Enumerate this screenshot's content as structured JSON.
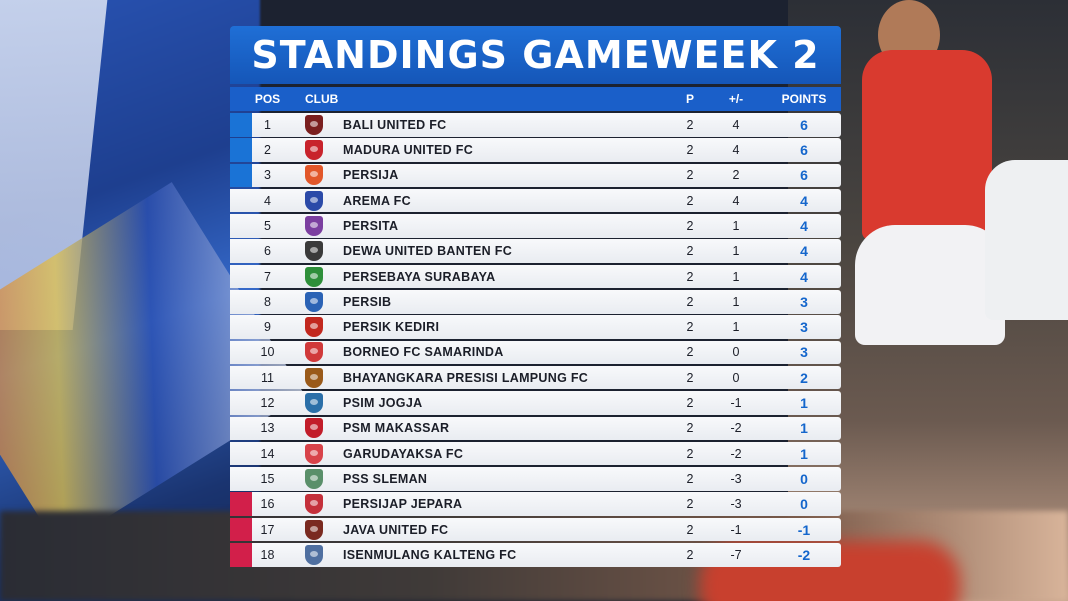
{
  "title": "STANDINGS GAMEWEEK 2",
  "columns": {
    "pos": "POS",
    "club": "CLUB",
    "played": "P",
    "diff": "+/-",
    "points": "POINTS"
  },
  "colors": {
    "title_bar": "#1f6fd6",
    "header_bar": "#1a5fc9",
    "qualify_marker": "#1a73d6",
    "relegation_marker": "#d21f4a",
    "points_text": "#1466cc"
  },
  "rows": [
    {
      "pos": "1",
      "club": "BALI UNITED FC",
      "p": "2",
      "diff": "4",
      "pts": "6",
      "zone": "qual",
      "crest_color": "#7a1f1f",
      "crest_icon": "bali-united-crest-icon"
    },
    {
      "pos": "2",
      "club": "MADURA UNITED FC",
      "p": "2",
      "diff": "4",
      "pts": "6",
      "zone": "qual",
      "crest_color": "#c8232c",
      "crest_icon": "madura-united-crest-icon"
    },
    {
      "pos": "3",
      "club": "PERSIJA",
      "p": "2",
      "diff": "2",
      "pts": "6",
      "zone": "qual",
      "crest_color": "#e2572a",
      "crest_icon": "persija-crest-icon"
    },
    {
      "pos": "4",
      "club": "AREMA FC",
      "p": "2",
      "diff": "4",
      "pts": "4",
      "zone": "none",
      "crest_color": "#2b4aa8",
      "crest_icon": "arema-crest-icon"
    },
    {
      "pos": "5",
      "club": "PERSITA",
      "p": "2",
      "diff": "1",
      "pts": "4",
      "zone": "none",
      "crest_color": "#7b3fa0",
      "crest_icon": "persita-crest-icon"
    },
    {
      "pos": "6",
      "club": "DEWA UNITED BANTEN FC",
      "p": "2",
      "diff": "1",
      "pts": "4",
      "zone": "none",
      "crest_color": "#3a3a3a",
      "crest_icon": "dewa-united-crest-icon"
    },
    {
      "pos": "7",
      "club": "PERSEBAYA SURABAYA",
      "p": "2",
      "diff": "1",
      "pts": "4",
      "zone": "none",
      "crest_color": "#2e8f3a",
      "crest_icon": "persebaya-crest-icon"
    },
    {
      "pos": "8",
      "club": "PERSIB",
      "p": "2",
      "diff": "1",
      "pts": "3",
      "zone": "none",
      "crest_color": "#2a62b5",
      "crest_icon": "persib-crest-icon"
    },
    {
      "pos": "9",
      "club": "PERSIK KEDIRI",
      "p": "2",
      "diff": "1",
      "pts": "3",
      "zone": "none",
      "crest_color": "#c2281f",
      "crest_icon": "persik-crest-icon"
    },
    {
      "pos": "10",
      "club": "BORNEO FC SAMARINDA",
      "p": "2",
      "diff": "0",
      "pts": "3",
      "zone": "none",
      "crest_color": "#d0393a",
      "crest_icon": "borneo-crest-icon"
    },
    {
      "pos": "11",
      "club": "BHAYANGKARA PRESISI LAMPUNG FC",
      "p": "2",
      "diff": "0",
      "pts": "2",
      "zone": "none",
      "crest_color": "#9a5a1a",
      "crest_icon": "bhayangkara-crest-icon"
    },
    {
      "pos": "12",
      "club": "PSIM JOGJA",
      "p": "2",
      "diff": "-1",
      "pts": "1",
      "zone": "none",
      "crest_color": "#2b6fa8",
      "crest_icon": "psim-crest-icon"
    },
    {
      "pos": "13",
      "club": "PSM MAKASSAR",
      "p": "2",
      "diff": "-2",
      "pts": "1",
      "zone": "none",
      "crest_color": "#c21d2a",
      "crest_icon": "psm-crest-icon"
    },
    {
      "pos": "14",
      "club": "GARUDAYAKSA FC",
      "p": "2",
      "diff": "-2",
      "pts": "1",
      "zone": "none",
      "crest_color": "#d8434a",
      "crest_icon": "garudayaksa-crest-icon"
    },
    {
      "pos": "15",
      "club": "PSS SLEMAN",
      "p": "2",
      "diff": "-3",
      "pts": "0",
      "zone": "none",
      "crest_color": "#5a8f6a",
      "crest_icon": "pss-crest-icon"
    },
    {
      "pos": "16",
      "club": "PERSIJAP JEPARA",
      "p": "2",
      "diff": "-3",
      "pts": "0",
      "zone": "releg",
      "crest_color": "#c4303b",
      "crest_icon": "persijap-crest-icon"
    },
    {
      "pos": "17",
      "club": "JAVA UNITED FC",
      "p": "2",
      "diff": "-1",
      "pts": "-1",
      "zone": "releg",
      "crest_color": "#7a2a20",
      "crest_icon": "java-united-crest-icon"
    },
    {
      "pos": "18",
      "club": "ISENMULANG KALTENG FC",
      "p": "2",
      "diff": "-7",
      "pts": "-2",
      "zone": "releg",
      "crest_color": "#4f6fa0",
      "crest_icon": "kalteng-crest-icon"
    }
  ]
}
